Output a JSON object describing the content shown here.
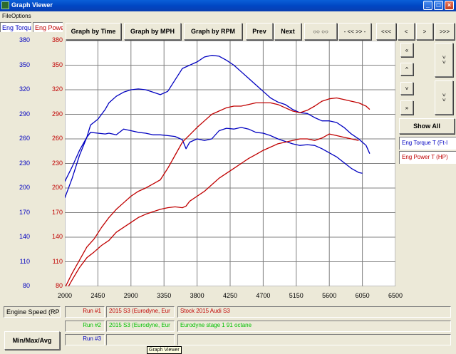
{
  "window": {
    "title": "Graph Viewer"
  },
  "menu": {
    "file": "File",
    "options": "Options"
  },
  "tabs": {
    "torque": "Eng Torqu",
    "power": "Eng Powe"
  },
  "toolbar": {
    "by_time": "Graph by Time",
    "by_mph": "Graph by MPH",
    "by_rpm": "Graph by RPM",
    "prev": "Prev",
    "next": "Next",
    "btn_a": "○○ ○○",
    "btn_b": "- << >> -",
    "btn_c": "<<<",
    "btn_d": "<",
    "btn_e": ">",
    "btn_f": ">>>"
  },
  "side": {
    "zoom_out_v": "«",
    "up": "^",
    "down": "˅",
    "zoom_in_v": "»",
    "right_a": "> >",
    "right_b": "> >",
    "show_all": "Show All",
    "legend_torque": "Eng Torque T (Ft-l",
    "legend_power": "Eng Power T (HP)"
  },
  "colors": {
    "torque": "#0000c0",
    "power": "#c00000",
    "run2_text": "#00c000",
    "plot_bg": "#ffffff",
    "grid": "#808080"
  },
  "bottom": {
    "x_axis_name": "Engine Speed (RPM",
    "min_max_avg": "Min/Max/Avg",
    "tooltip": "Graph Viewer",
    "runs": [
      {
        "label": "Run #1",
        "name": "2015 S3 (Eurodyne, Eur",
        "desc": "Stock 2015 Audi S3"
      },
      {
        "label": "Run #2",
        "name": "2015 S3 (Eurodyne, Eur",
        "desc": "Eurodyne stage 1 91 octane"
      },
      {
        "label": "Run #3",
        "name": "",
        "desc": ""
      }
    ]
  },
  "chart_data": {
    "type": "line",
    "xlabel": "Engine Speed (RPM",
    "xlim": [
      2000,
      6500
    ],
    "x_ticks": [
      "2000",
      "2450",
      "2900",
      "3350",
      "3800",
      "4250",
      "4700",
      "5150",
      "5600",
      "6050",
      "6500"
    ],
    "y_left_ticks": [
      "380",
      "350",
      "320",
      "290",
      "260",
      "230",
      "200",
      "170",
      "140",
      "110",
      "80"
    ],
    "y_right_ticks": [
      "380",
      "350",
      "320",
      "290",
      "260",
      "230",
      "200",
      "170",
      "140",
      "110",
      "80"
    ],
    "ylim": [
      80,
      380
    ],
    "grid": true,
    "series": [
      {
        "name": "Eng Torque T (Ft-l",
        "run": "Run #1",
        "color": "#0000c0",
        "x": [
          2000,
          2100,
          2200,
          2300,
          2350,
          2450,
          2550,
          2600,
          2700,
          2800,
          2900,
          3000,
          3100,
          3200,
          3300,
          3400,
          3500,
          3600,
          3650,
          3700,
          3800,
          3900,
          4000,
          4100,
          4200,
          4300,
          4400,
          4500,
          4600,
          4700,
          4800,
          4900,
          5000,
          5100,
          5200,
          5300,
          5400,
          5500,
          5600,
          5700,
          5800,
          5900,
          6000,
          6050
        ],
        "y": [
          188,
          212,
          240,
          262,
          268,
          267,
          266,
          267,
          265,
          272,
          270,
          268,
          267,
          265,
          265,
          264,
          263,
          259,
          248,
          256,
          260,
          258,
          260,
          270,
          273,
          272,
          274,
          272,
          268,
          267,
          264,
          260,
          257,
          254,
          252,
          253,
          252,
          248,
          243,
          238,
          231,
          224,
          219,
          218
        ]
      },
      {
        "name": "Eng Torque T (Ft-l",
        "run": "Run #2",
        "color": "#0000c0",
        "x": [
          2000,
          2100,
          2200,
          2300,
          2350,
          2450,
          2550,
          2600,
          2700,
          2800,
          2900,
          3000,
          3100,
          3200,
          3300,
          3400,
          3500,
          3600,
          3700,
          3800,
          3900,
          4000,
          4100,
          4200,
          4300,
          4400,
          4500,
          4600,
          4700,
          4800,
          4900,
          5000,
          5100,
          5200,
          5300,
          5400,
          5500,
          5600,
          5700,
          5800,
          5900,
          6000,
          6100,
          6150
        ],
        "y": [
          208,
          226,
          246,
          262,
          277,
          284,
          296,
          304,
          312,
          317,
          320,
          321,
          320,
          317,
          314,
          318,
          332,
          346,
          350,
          354,
          360,
          362,
          361,
          356,
          350,
          342,
          334,
          326,
          318,
          310,
          305,
          302,
          296,
          292,
          291,
          286,
          282,
          282,
          280,
          274,
          266,
          260,
          252,
          242
        ]
      },
      {
        "name": "Eng Power T (HP)",
        "run": "Run #1",
        "color": "#c00000",
        "x": [
          2000,
          2100,
          2200,
          2300,
          2400,
          2500,
          2600,
          2700,
          2800,
          2900,
          3000,
          3100,
          3200,
          3300,
          3400,
          3500,
          3600,
          3650,
          3700,
          3800,
          3900,
          4000,
          4100,
          4200,
          4300,
          4400,
          4500,
          4600,
          4700,
          4800,
          4900,
          5000,
          5100,
          5200,
          5300,
          5400,
          5500,
          5600,
          5700,
          5800,
          5900,
          6000
        ],
        "y": [
          72,
          88,
          103,
          115,
          122,
          130,
          136,
          146,
          152,
          158,
          164,
          168,
          171,
          174,
          176,
          177,
          176,
          178,
          184,
          190,
          196,
          204,
          212,
          218,
          224,
          230,
          236,
          241,
          246,
          250,
          254,
          256,
          258,
          260,
          260,
          258,
          261,
          266,
          264,
          262,
          260,
          258
        ]
      },
      {
        "name": "Eng Power T (HP)",
        "run": "Run #2",
        "color": "#c00000",
        "x": [
          2000,
          2100,
          2200,
          2300,
          2400,
          2500,
          2600,
          2700,
          2800,
          2900,
          3000,
          3100,
          3200,
          3300,
          3400,
          3500,
          3600,
          3700,
          3800,
          3900,
          4000,
          4100,
          4200,
          4300,
          4400,
          4500,
          4600,
          4700,
          4800,
          4900,
          5000,
          5100,
          5200,
          5300,
          5400,
          5500,
          5600,
          5700,
          5800,
          5900,
          6000,
          6100,
          6150
        ],
        "y": [
          78,
          96,
          112,
          128,
          138,
          152,
          164,
          174,
          182,
          190,
          196,
          200,
          205,
          210,
          224,
          240,
          256,
          265,
          274,
          282,
          290,
          294,
          298,
          300,
          300,
          302,
          304,
          304,
          304,
          302,
          298,
          294,
          292,
          295,
          300,
          306,
          309,
          310,
          308,
          306,
          304,
          300,
          296
        ]
      }
    ]
  }
}
